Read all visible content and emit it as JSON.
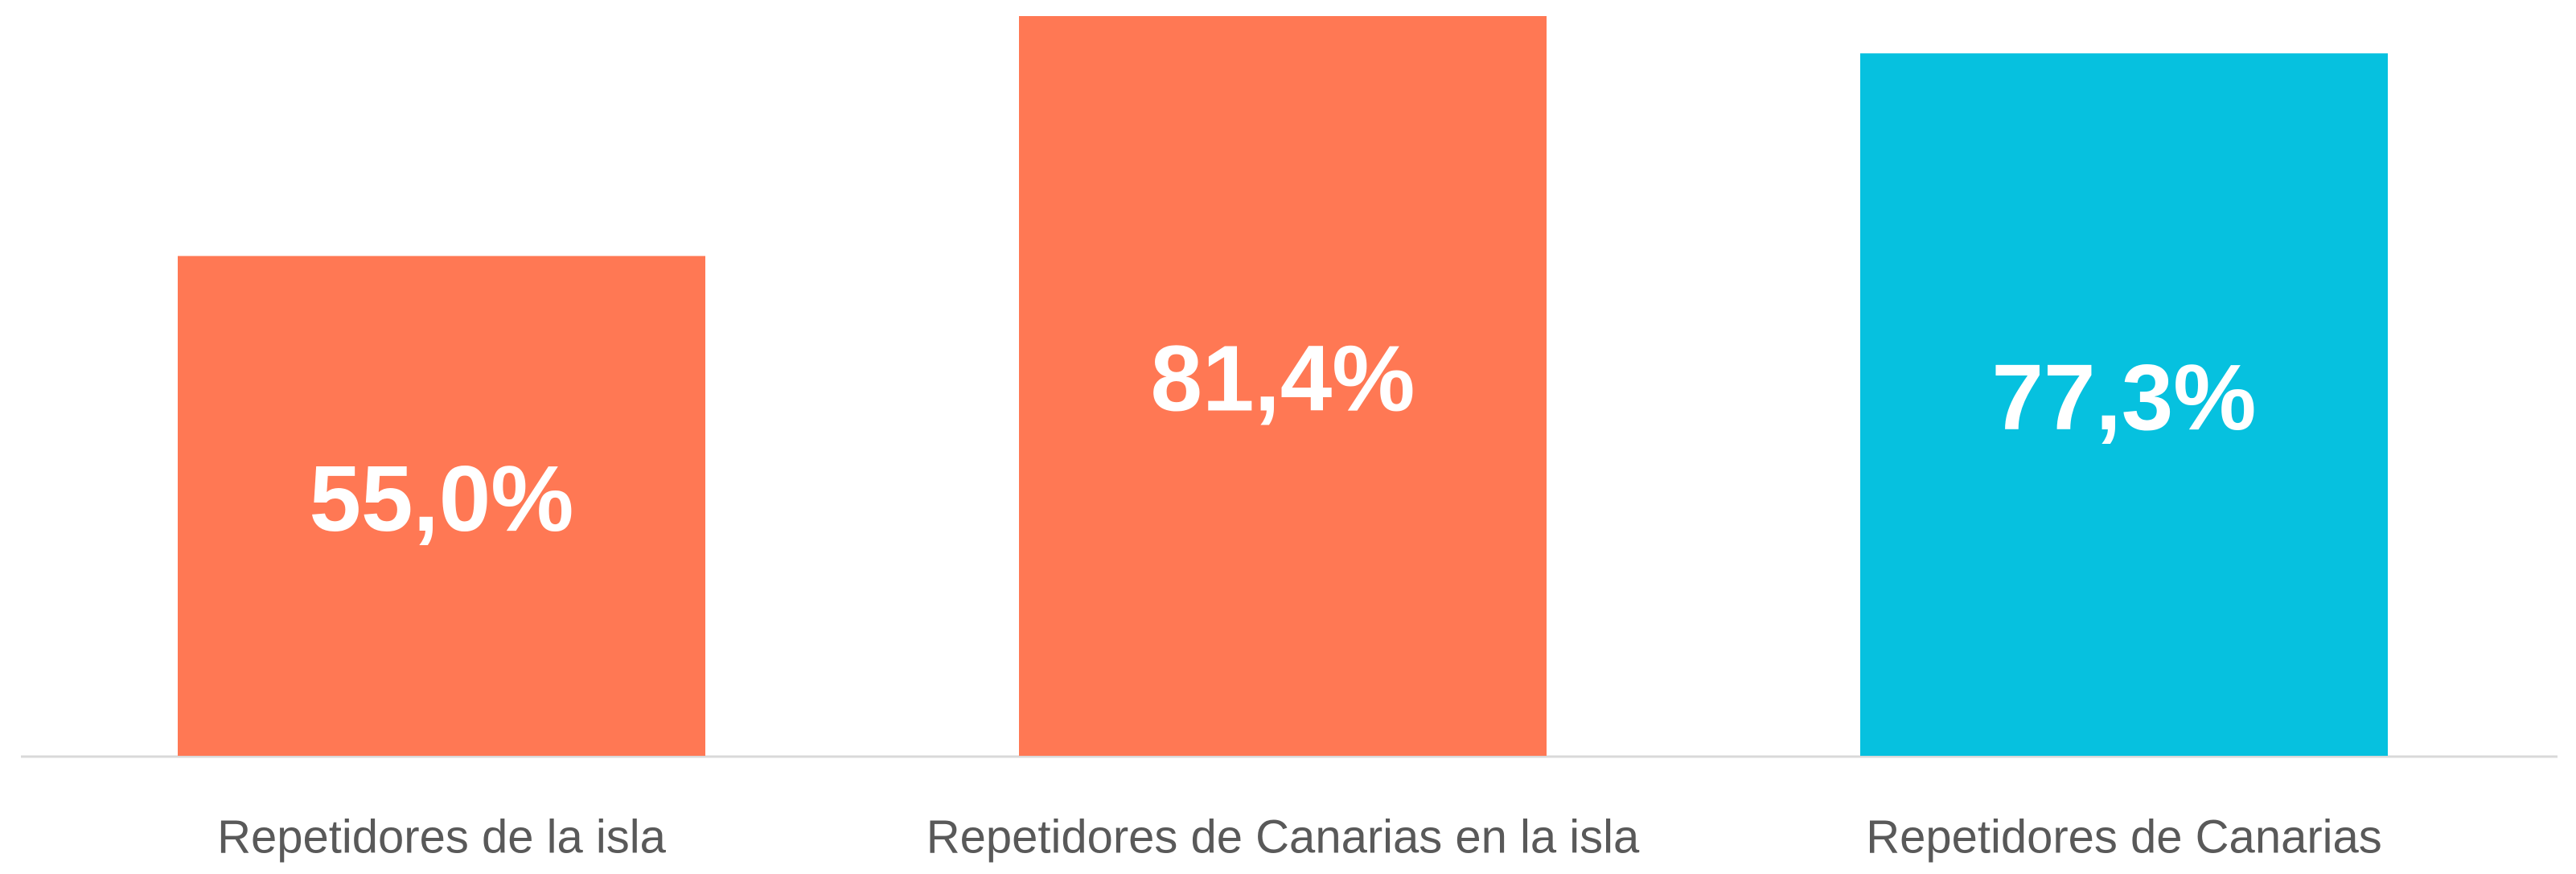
{
  "chart_data": {
    "type": "bar",
    "categories": [
      "Repetidores de la isla",
      "Repetidores de Canarias en la isla",
      "Repetidores de Canarias"
    ],
    "values": [
      55.0,
      81.4,
      77.3
    ],
    "value_labels": [
      "55,0%",
      "81,4%",
      "77,3%"
    ],
    "colors": [
      "#ff7854",
      "#ff7854",
      "#06c1df"
    ]
  }
}
